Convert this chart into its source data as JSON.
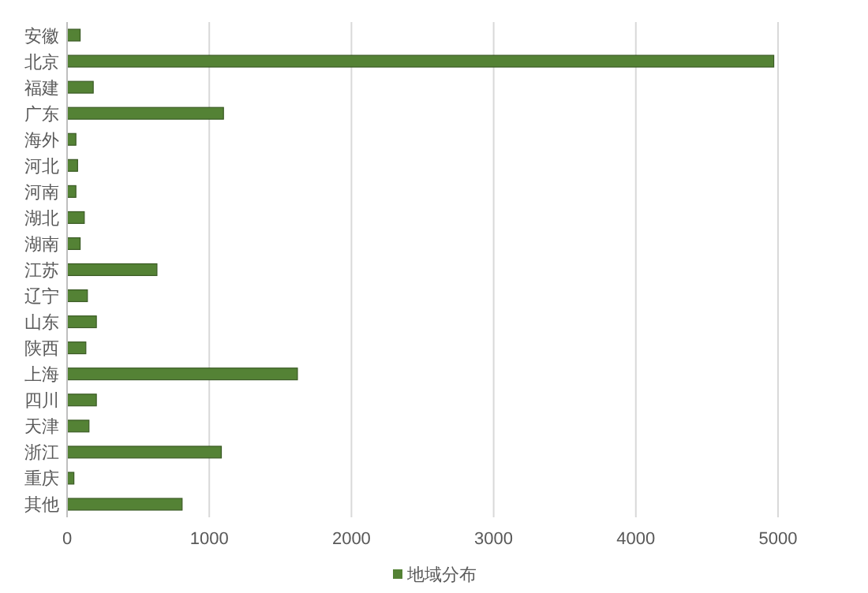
{
  "chart_data": {
    "type": "bar",
    "orientation": "horizontal",
    "categories": [
      "安徽",
      "北京",
      "福建",
      "广东",
      "海外",
      "河北",
      "河南",
      "湖北",
      "湖南",
      "江苏",
      "辽宁",
      "山东",
      "陕西",
      "上海",
      "四川",
      "天津",
      "浙江",
      "重庆",
      "其他"
    ],
    "series": [
      {
        "name": "地域分布",
        "color": "#548235",
        "values": [
          92,
          4970,
          184,
          1100,
          62,
          74,
          62,
          121,
          92,
          632,
          143,
          206,
          132,
          1620,
          206,
          154,
          1085,
          48,
          809
        ]
      }
    ],
    "xlim": [
      0,
      5000
    ],
    "xticks": [
      0,
      1000,
      2000,
      3000,
      4000,
      5000
    ],
    "grid": "x",
    "legend": "bottom"
  }
}
